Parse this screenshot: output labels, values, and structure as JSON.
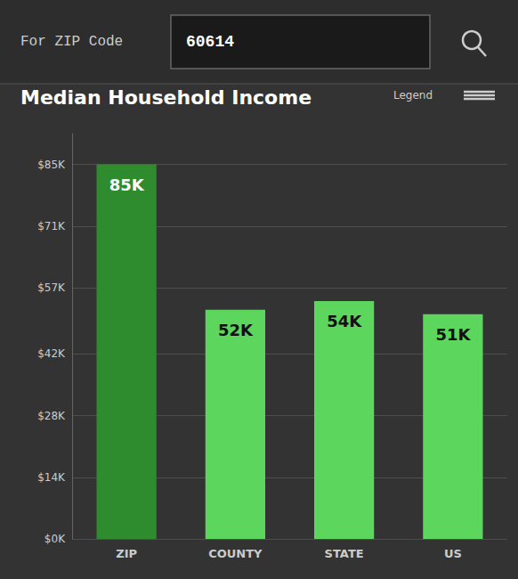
{
  "chart_data": {
    "type": "bar",
    "title": "Median Household Income",
    "annotations": [
      "For ZIP Code",
      "60614",
      "Legend"
    ],
    "categories": [
      "ZIP",
      "COUNTY",
      "STATE",
      "US"
    ],
    "values": [
      85,
      52,
      54,
      51
    ],
    "value_labels": [
      "85K",
      "52K",
      "54K",
      "51K"
    ],
    "data_labels": true,
    "colors": [
      "#2e8b2e",
      "#5cd65c",
      "#5cd65c",
      "#5cd65c"
    ],
    "ylim": [
      0,
      92
    ],
    "yticks": [
      {
        "value": 0,
        "label": "$0K"
      },
      {
        "value": 14,
        "label": "$14K"
      },
      {
        "value": 28,
        "label": "$28K"
      },
      {
        "value": 42,
        "label": "$42K"
      },
      {
        "value": 57,
        "label": "$57K"
      },
      {
        "value": 71,
        "label": "$71K"
      },
      {
        "value": 85,
        "label": "$85K"
      }
    ],
    "grid": true
  }
}
